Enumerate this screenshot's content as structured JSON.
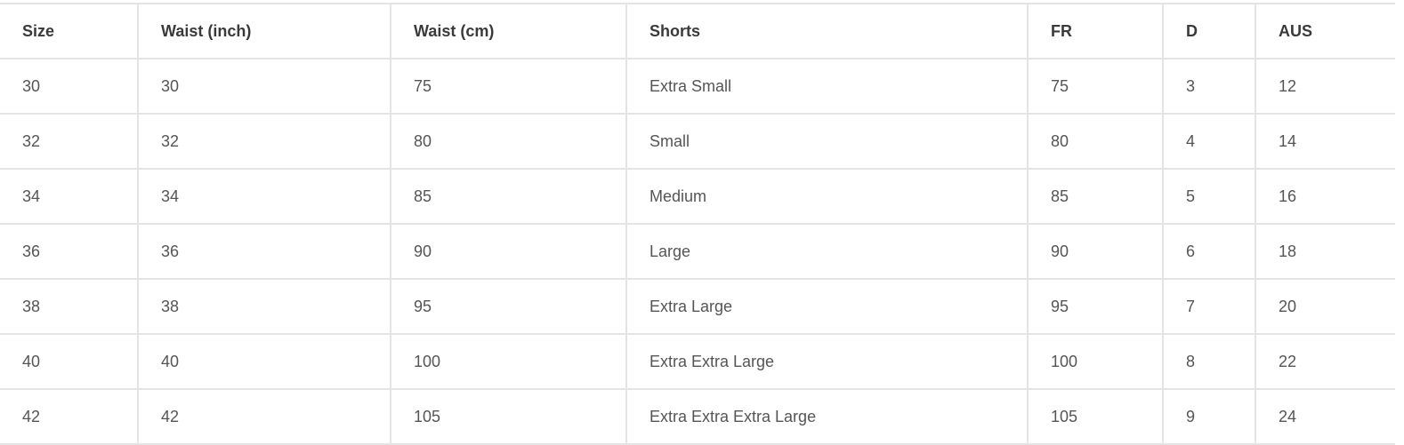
{
  "table": {
    "headers": [
      "Size",
      "Waist (inch)",
      "Waist (cm)",
      "Shorts",
      "FR",
      "D",
      "AUS"
    ],
    "rows": [
      [
        "30",
        "30",
        "75",
        "Extra Small",
        "75",
        "3",
        "12"
      ],
      [
        "32",
        "32",
        "80",
        "Small",
        "80",
        "4",
        "14"
      ],
      [
        "34",
        "34",
        "85",
        "Medium",
        "85",
        "5",
        "16"
      ],
      [
        "36",
        "36",
        "90",
        "Large",
        "90",
        "6",
        "18"
      ],
      [
        "38",
        "38",
        "95",
        "Extra Large",
        "95",
        "7",
        "20"
      ],
      [
        "40",
        "40",
        "100",
        "Extra Extra Large",
        "100",
        "8",
        "22"
      ],
      [
        "42",
        "42",
        "105",
        "Extra Extra Extra Large",
        "105",
        "9",
        "24"
      ]
    ]
  }
}
